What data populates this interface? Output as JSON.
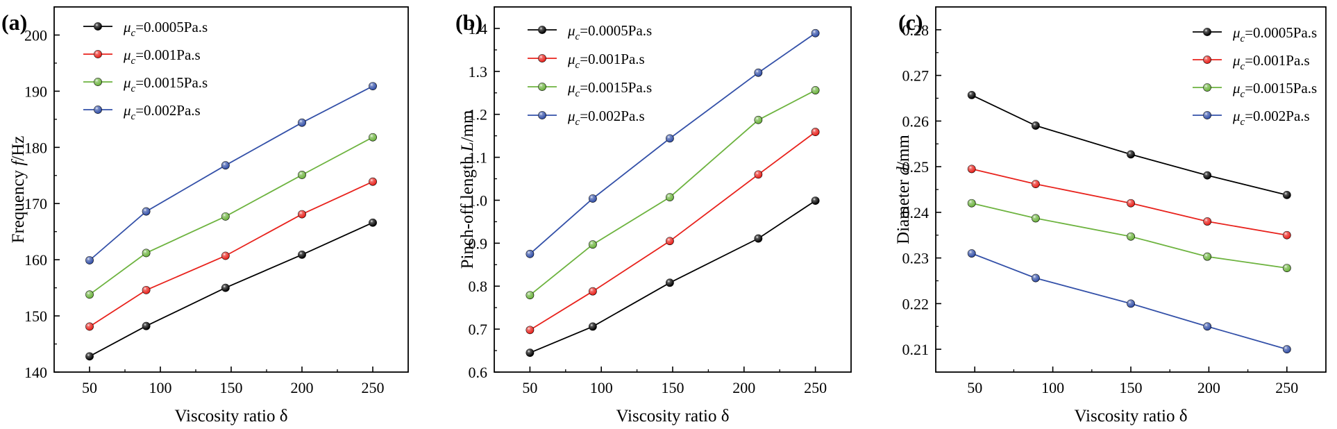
{
  "chart_data": [
    {
      "panel": "(a)",
      "type": "line",
      "xlabel": "Viscosity ratio δ",
      "ylabel": "Frequency f/Hz",
      "ylabel_pre": "Frequency ",
      "ylabel_var": "f",
      "ylabel_post": "/Hz",
      "xlim": [
        25,
        275
      ],
      "ylim": [
        140,
        205
      ],
      "xticks": [
        50,
        100,
        150,
        200,
        250
      ],
      "yticks": [
        140,
        150,
        160,
        170,
        180,
        190,
        200
      ],
      "legend_position": "top-left",
      "series": [
        {
          "name": "μc=0.0005Pa.s",
          "value_label": "=0.0005Pa.s",
          "color": "#000000",
          "x": [
            50,
            90,
            146,
            200,
            250
          ],
          "values": [
            142.8,
            148.2,
            155.0,
            160.9,
            166.6
          ]
        },
        {
          "name": "μc=0.001Pa.s",
          "value_label": "=0.001Pa.s",
          "color": "#e8221c",
          "x": [
            50,
            90,
            146,
            200,
            250
          ],
          "values": [
            148.1,
            154.6,
            160.7,
            168.1,
            173.9
          ]
        },
        {
          "name": "μc=0.0015Pa.s",
          "value_label": "=0.0015Pa.s",
          "color": "#6db33f",
          "x": [
            50,
            90,
            146,
            200,
            250
          ],
          "values": [
            153.8,
            161.2,
            167.7,
            175.1,
            181.8
          ]
        },
        {
          "name": "μc=0.002Pa.s",
          "value_label": "=0.002Pa.s",
          "color": "#3350a8",
          "x": [
            50,
            90,
            146,
            200,
            250
          ],
          "values": [
            159.9,
            168.6,
            176.8,
            184.4,
            190.9
          ]
        }
      ]
    },
    {
      "panel": "(b)",
      "type": "line",
      "xlabel": "Viscosity ratio δ",
      "ylabel": "Pinch-off length L/mm",
      "ylabel_pre": "Pinch-off length ",
      "ylabel_var": "L",
      "ylabel_post": "/mm",
      "xlim": [
        25,
        275
      ],
      "ylim": [
        0.6,
        1.45
      ],
      "xticks": [
        50,
        100,
        150,
        200,
        250
      ],
      "yticks": [
        0.6,
        0.7,
        0.8,
        0.9,
        1.0,
        1.1,
        1.2,
        1.3,
        1.4
      ],
      "ytick_labels": [
        "0.6",
        "0.7",
        "0.8",
        "0.9",
        "1.0",
        "1.1",
        "1.2",
        "1.3",
        "1.4"
      ],
      "legend_position": "top-left",
      "series": [
        {
          "name": "μc=0.0005Pa.s",
          "value_label": "=0.0005Pa.s",
          "color": "#000000",
          "x": [
            50,
            94,
            148,
            210,
            250
          ],
          "values": [
            0.645,
            0.706,
            0.808,
            0.911,
            0.999
          ]
        },
        {
          "name": "μc=0.001Pa.s",
          "value_label": "=0.001Pa.s",
          "color": "#e8221c",
          "x": [
            50,
            94,
            148,
            210,
            250
          ],
          "values": [
            0.698,
            0.788,
            0.905,
            1.06,
            1.159
          ]
        },
        {
          "name": "μc=0.0015Pa.s",
          "value_label": "=0.0015Pa.s",
          "color": "#6db33f",
          "x": [
            50,
            94,
            148,
            210,
            250
          ],
          "values": [
            0.779,
            0.897,
            1.007,
            1.187,
            1.256
          ]
        },
        {
          "name": "μc=0.002Pa.s",
          "value_label": "=0.002Pa.s",
          "color": "#3350a8",
          "x": [
            50,
            94,
            148,
            210,
            250
          ],
          "values": [
            0.875,
            1.004,
            1.144,
            1.297,
            1.389
          ]
        }
      ]
    },
    {
      "panel": "(c)",
      "type": "line",
      "xlabel": "Viscosity ratio δ",
      "ylabel": "Diameter d/mm",
      "ylabel_pre": "Diameter ",
      "ylabel_var": "d",
      "ylabel_post": "/mm",
      "xlim": [
        25,
        275
      ],
      "ylim": [
        0.205,
        0.285
      ],
      "xticks": [
        50,
        100,
        150,
        200,
        250
      ],
      "yticks": [
        0.21,
        0.22,
        0.23,
        0.24,
        0.25,
        0.26,
        0.27,
        0.28
      ],
      "ytick_labels": [
        "0.21",
        "0.22",
        "0.23",
        "0.24",
        "0.25",
        "0.26",
        "0.27",
        "0.28"
      ],
      "legend_position": "top-right",
      "series": [
        {
          "name": "μc=0.0005Pa.s",
          "value_label": "=0.0005Pa.s",
          "color": "#000000",
          "x": [
            48,
            89,
            150,
            199,
            250
          ],
          "values": [
            0.2657,
            0.259,
            0.2527,
            0.2481,
            0.2438
          ]
        },
        {
          "name": "μc=0.001Pa.s",
          "value_label": "=0.001Pa.s",
          "color": "#e8221c",
          "x": [
            48,
            89,
            150,
            199,
            250
          ],
          "values": [
            0.2495,
            0.2462,
            0.242,
            0.238,
            0.235
          ]
        },
        {
          "name": "μc=0.0015Pa.s",
          "value_label": "=0.0015Pa.s",
          "color": "#6db33f",
          "x": [
            48,
            89,
            150,
            199,
            250
          ],
          "values": [
            0.242,
            0.2387,
            0.2347,
            0.2303,
            0.2278
          ]
        },
        {
          "name": "μc=0.002Pa.s",
          "value_label": "=0.002Pa.s",
          "color": "#3350a8",
          "x": [
            48,
            89,
            150,
            199,
            250
          ],
          "values": [
            0.231,
            0.2256,
            0.22,
            0.215,
            0.21
          ]
        }
      ]
    }
  ]
}
